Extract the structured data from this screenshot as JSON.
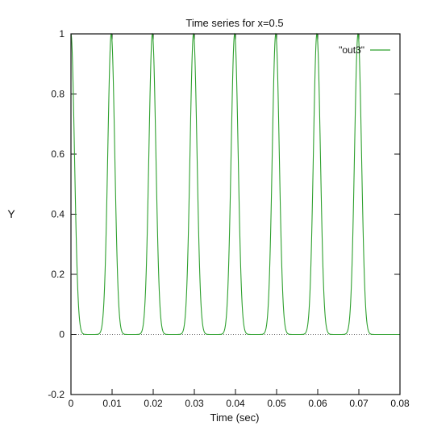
{
  "chart_data": {
    "type": "line",
    "title": "Time series for x=0.5",
    "xlabel": "Time (sec)",
    "ylabel": "Y",
    "xlim": [
      0,
      0.08
    ],
    "ylim": [
      -0.2,
      1
    ],
    "x_ticks": [
      "0",
      "0.01",
      "0.02",
      "0.03",
      "0.04",
      "0.05",
      "0.06",
      "0.07",
      "0.08"
    ],
    "y_ticks": [
      "-0.2",
      "0",
      "0.2",
      "0.4",
      "0.6",
      "0.8",
      "1"
    ],
    "zero_line": true,
    "legend_position": "top-right",
    "series": [
      {
        "name": "\"out3\"",
        "color": "#2ea02e",
        "pulse_peaks_x": [
          0,
          0.0098,
          0.0198,
          0.0298,
          0.0398,
          0.0498,
          0.0598,
          0.0698
        ],
        "peak_value": 1,
        "baseline_value": 0
      }
    ]
  }
}
